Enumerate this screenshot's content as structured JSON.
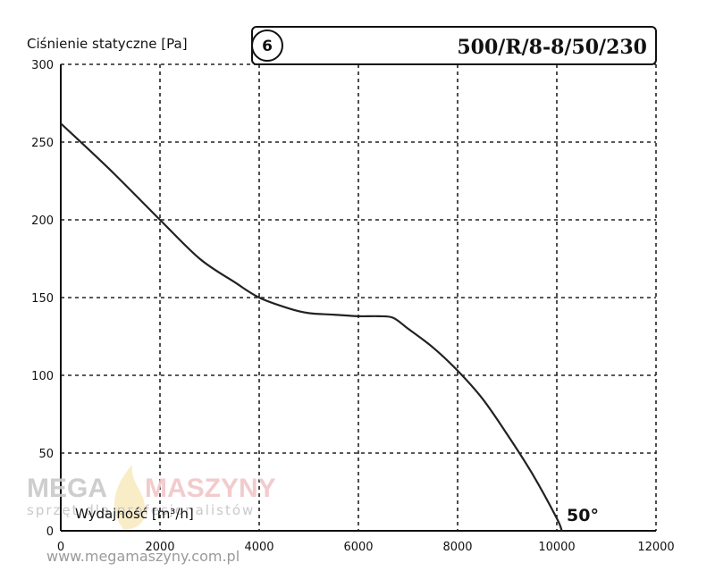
{
  "chart_data": {
    "type": "line",
    "title": "500/R/8-8/50/230",
    "badge": "6",
    "ylabel": "Ciśnienie statyczne [Pa]",
    "xlabel": "Wydajność [m³/h]",
    "angle_label": "50°",
    "xlim": [
      0,
      12000
    ],
    "ylim": [
      0,
      300
    ],
    "x_ticks": [
      0,
      2000,
      4000,
      6000,
      8000,
      10000,
      12000
    ],
    "y_ticks": [
      0,
      50,
      100,
      150,
      200,
      250,
      300
    ],
    "grid": true,
    "series": [
      {
        "x": [
          0,
          1000,
          2000,
          2800,
          3500,
          4000,
          4600,
          5000,
          5500,
          6000,
          6400,
          6700,
          7000,
          7500,
          8000,
          8500,
          9000,
          9500,
          10000,
          10100
        ],
        "y": [
          262,
          232,
          200,
          175,
          160,
          150,
          143,
          140,
          139,
          138,
          138,
          137,
          130,
          118,
          103,
          85,
          62,
          37,
          8,
          0
        ]
      }
    ]
  },
  "watermark": {
    "mega": "MEGA",
    "maszyny": "MASZYNY",
    "tagline": "sprzęt dla profesjonalistów",
    "url": "www.megamaszyny.com.pl"
  },
  "colors": {
    "curve": "#222222",
    "grid": "#222222"
  }
}
